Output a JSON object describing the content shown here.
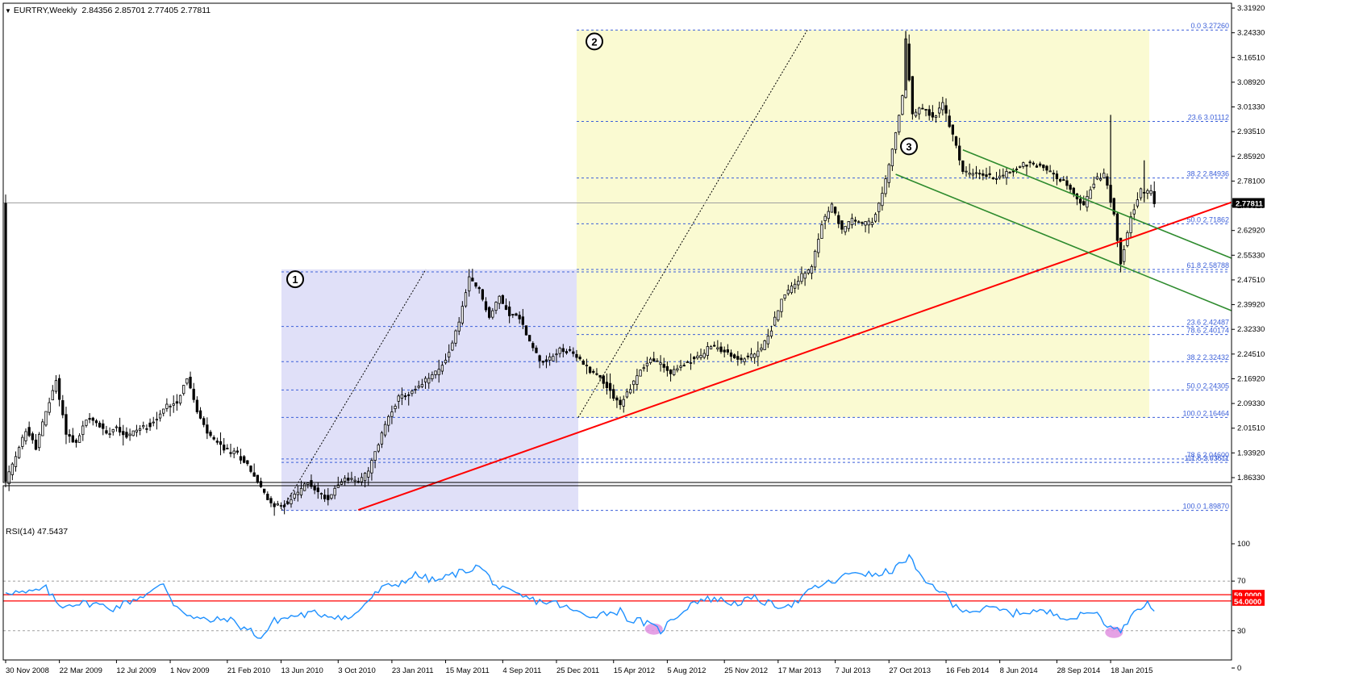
{
  "header": {
    "symbol_label": "EURTRY,Weekly",
    "ohlc": "2.84356 2.85701 2.77405 2.77811"
  },
  "rsi_header": {
    "label": "RSI(14) 47.5437"
  },
  "colors": {
    "background": "#ffffff",
    "candle": "#000000",
    "fib_line": "#3b5fd9",
    "zone1_fill": "#e0e0f8",
    "zone2_fill": "#fafad2",
    "trend_red": "#ff0000",
    "channel_green": "#2e8b2e",
    "rsi_line": "#1e90ff",
    "rsi_levels": "#ff0000",
    "rsi_marker": "#e090e0"
  },
  "chart_data": [
    {
      "type": "candlestick",
      "symbol": "EURTRY",
      "timeframe": "Weekly",
      "ylim": [
        1.8633,
        3.3193
      ],
      "y_ticks": [
        "3.31920",
        "3.24330",
        "3.16510",
        "3.08920",
        "3.01330",
        "2.93510",
        "2.85920",
        "2.78100",
        "2.70510",
        "2.62920",
        "2.55330",
        "2.47510",
        "2.39920",
        "2.32330",
        "2.24510",
        "2.16920",
        "2.09330",
        "2.01510",
        "1.93920",
        "1.86330"
      ],
      "x_ticks": [
        "30 Nov 2008",
        "22 Mar 2009",
        "12 Jul 2009",
        "1 Nov 2009",
        "21 Feb 2010",
        "13 Jun 2010",
        "3 Oct 2010",
        "23 Jan 2011",
        "15 May 2011",
        "4 Sep 2011",
        "25 Dec 2011",
        "15 Apr 2012",
        "5 Aug 2012",
        "25 Nov 2012",
        "17 Mar 2013",
        "7 Jul 2013",
        "27 Oct 2013",
        "16 Feb 2014",
        "8 Jun 2014",
        "28 Sep 2014",
        "18 Jan 2015"
      ],
      "last_price": "2.77811",
      "price_path": [
        [
          0,
          1.98
        ],
        [
          3,
          2.05
        ],
        [
          6,
          2.13
        ],
        [
          9,
          2.08
        ],
        [
          12,
          2.18
        ],
        [
          15,
          2.27
        ],
        [
          18,
          2.12
        ],
        [
          21,
          2.09
        ],
        [
          24,
          2.16
        ],
        [
          27,
          2.15
        ],
        [
          30,
          2.12
        ],
        [
          33,
          2.14
        ],
        [
          36,
          2.11
        ],
        [
          39,
          2.13
        ],
        [
          42,
          2.14
        ],
        [
          45,
          2.16
        ],
        [
          48,
          2.2
        ],
        [
          51,
          2.21
        ],
        [
          54,
          2.28
        ],
        [
          57,
          2.18
        ],
        [
          60,
          2.12
        ],
        [
          63,
          2.09
        ],
        [
          66,
          2.07
        ],
        [
          69,
          2.06
        ],
        [
          72,
          2.03
        ],
        [
          75,
          1.98
        ],
        [
          78,
          1.93
        ],
        [
          81,
          1.91
        ],
        [
          84,
          1.92
        ],
        [
          87,
          1.95
        ],
        [
          90,
          1.98
        ],
        [
          93,
          1.95
        ],
        [
          96,
          1.93
        ],
        [
          99,
          1.98
        ],
        [
          102,
          1.99
        ],
        [
          105,
          1.98
        ],
        [
          108,
          2.01
        ],
        [
          111,
          2.09
        ],
        [
          114,
          2.17
        ],
        [
          117,
          2.22
        ],
        [
          120,
          2.23
        ],
        [
          123,
          2.25
        ],
        [
          126,
          2.28
        ],
        [
          129,
          2.3
        ],
        [
          132,
          2.35
        ],
        [
          135,
          2.44
        ],
        [
          138,
          2.56
        ],
        [
          141,
          2.53
        ],
        [
          144,
          2.45
        ],
        [
          147,
          2.51
        ],
        [
          150,
          2.46
        ],
        [
          153,
          2.45
        ],
        [
          156,
          2.38
        ],
        [
          159,
          2.33
        ],
        [
          162,
          2.33
        ],
        [
          165,
          2.36
        ],
        [
          168,
          2.35
        ],
        [
          171,
          2.33
        ],
        [
          174,
          2.3
        ],
        [
          177,
          2.28
        ],
        [
          180,
          2.24
        ],
        [
          183,
          2.2
        ],
        [
          186,
          2.25
        ],
        [
          189,
          2.3
        ],
        [
          192,
          2.33
        ],
        [
          195,
          2.32
        ],
        [
          198,
          2.29
        ],
        [
          201,
          2.31
        ],
        [
          204,
          2.33
        ],
        [
          207,
          2.34
        ],
        [
          210,
          2.37
        ],
        [
          213,
          2.36
        ],
        [
          216,
          2.34
        ],
        [
          219,
          2.33
        ],
        [
          222,
          2.34
        ],
        [
          225,
          2.36
        ],
        [
          228,
          2.42
        ],
        [
          231,
          2.5
        ],
        [
          234,
          2.54
        ],
        [
          237,
          2.57
        ],
        [
          240,
          2.59
        ],
        [
          243,
          2.72
        ],
        [
          246,
          2.77
        ],
        [
          249,
          2.7
        ],
        [
          252,
          2.73
        ],
        [
          255,
          2.72
        ],
        [
          258,
          2.72
        ],
        [
          261,
          2.8
        ],
        [
          264,
          2.93
        ],
        [
          267,
          3.08
        ],
        [
          268,
          3.24
        ],
        [
          270,
          3.03
        ],
        [
          273,
          3.05
        ],
        [
          276,
          3.02
        ],
        [
          279,
          3.06
        ],
        [
          282,
          2.97
        ],
        [
          285,
          2.87
        ],
        [
          288,
          2.86
        ],
        [
          291,
          2.86
        ],
        [
          294,
          2.85
        ],
        [
          297,
          2.86
        ],
        [
          300,
          2.87
        ],
        [
          303,
          2.89
        ],
        [
          306,
          2.89
        ],
        [
          309,
          2.88
        ],
        [
          312,
          2.86
        ],
        [
          315,
          2.84
        ],
        [
          318,
          2.8
        ],
        [
          321,
          2.77
        ],
        [
          324,
          2.84
        ],
        [
          327,
          2.86
        ],
        [
          330,
          2.75
        ],
        [
          332,
          2.61
        ],
        [
          335,
          2.74
        ],
        [
          338,
          2.81
        ],
        [
          341,
          2.81
        ],
        [
          342,
          2.78
        ]
      ],
      "annotations": [
        {
          "label": "1",
          "type": "circled-number"
        },
        {
          "label": "2",
          "type": "circled-number"
        },
        {
          "label": "3",
          "type": "circled-number"
        }
      ],
      "fib_zone_1": {
        "levels": [
          {
            "label": "23.6 2.42487",
            "price": 2.42487
          },
          {
            "label": "38.2 2.32432",
            "price": 2.32432
          },
          {
            "label": "50.0 2.24305",
            "price": 2.24305
          },
          {
            "label": "100.0 1.89870",
            "price": 1.8987
          }
        ]
      },
      "fib_zone_2": {
        "levels": [
          {
            "label": "0.0 3.27260",
            "price": 3.2726
          },
          {
            "label": "23.6 3.01112",
            "price": 3.01112
          },
          {
            "label": "38.2 2.84936",
            "price": 2.84936
          },
          {
            "label": "50.0 2.71862",
            "price": 2.71862
          },
          {
            "label": "61.8 2.58788",
            "price": 2.58788
          },
          {
            "label": "78.6 2.40174",
            "price": 2.40174
          },
          {
            "label": "100.0 2.16464",
            "price": 2.16464
          },
          {
            "label": "78.6 2.04600",
            "price": 2.046
          },
          {
            "label": "111.6 2.03611",
            "price": 2.03611
          }
        ]
      },
      "trendline_red": {
        "from": [
          105,
          1.9
        ],
        "to": [
          365,
          2.78
        ]
      },
      "channel_upper": {
        "from": [
          285,
          2.93
        ],
        "to": [
          365,
          2.62
        ]
      },
      "channel_lower": {
        "from": [
          265,
          2.86
        ],
        "to": [
          365,
          2.47
        ]
      }
    },
    {
      "type": "line",
      "indicator": "RSI(14)",
      "ylim": [
        0,
        100
      ],
      "y_ticks": [
        "100",
        "70",
        "30",
        "0"
      ],
      "levels": [
        {
          "label": "59.0000",
          "value": 59
        },
        {
          "label": "54.0000",
          "value": 54
        }
      ],
      "dotted_levels": [
        70,
        30
      ],
      "rsi_path": [
        [
          0,
          62
        ],
        [
          6,
          60
        ],
        [
          12,
          64
        ],
        [
          16,
          50
        ],
        [
          20,
          52
        ],
        [
          26,
          52
        ],
        [
          32,
          48
        ],
        [
          38,
          55
        ],
        [
          44,
          62
        ],
        [
          47,
          68
        ],
        [
          50,
          52
        ],
        [
          56,
          40
        ],
        [
          62,
          38
        ],
        [
          66,
          40
        ],
        [
          71,
          32
        ],
        [
          73,
          30
        ],
        [
          76,
          24
        ],
        [
          80,
          38
        ],
        [
          86,
          42
        ],
        [
          92,
          44
        ],
        [
          98,
          42
        ],
        [
          103,
          40
        ],
        [
          107,
          52
        ],
        [
          112,
          64
        ],
        [
          117,
          68
        ],
        [
          122,
          75
        ],
        [
          128,
          70
        ],
        [
          134,
          76
        ],
        [
          141,
          82
        ],
        [
          147,
          64
        ],
        [
          153,
          58
        ],
        [
          158,
          54
        ],
        [
          164,
          52
        ],
        [
          169,
          46
        ],
        [
          173,
          42
        ],
        [
          178,
          44
        ],
        [
          183,
          46
        ],
        [
          186,
          38
        ],
        [
          189,
          38
        ],
        [
          192,
          34
        ],
        [
          195,
          30
        ],
        [
          199,
          40
        ],
        [
          205,
          54
        ],
        [
          211,
          56
        ],
        [
          217,
          52
        ],
        [
          223,
          56
        ],
        [
          229,
          50
        ],
        [
          235,
          52
        ],
        [
          241,
          65
        ],
        [
          247,
          70
        ],
        [
          253,
          78
        ],
        [
          259,
          74
        ],
        [
          265,
          80
        ],
        [
          269,
          90
        ],
        [
          273,
          70
        ],
        [
          276,
          66
        ],
        [
          279,
          62
        ],
        [
          282,
          50
        ],
        [
          288,
          46
        ],
        [
          294,
          48
        ],
        [
          300,
          44
        ],
        [
          306,
          46
        ],
        [
          312,
          44
        ],
        [
          318,
          40
        ],
        [
          324,
          46
        ],
        [
          330,
          30
        ],
        [
          333,
          32
        ],
        [
          336,
          48
        ],
        [
          340,
          52
        ],
        [
          342,
          47
        ]
      ],
      "highlighted_lows": [
        193,
        330
      ]
    }
  ]
}
